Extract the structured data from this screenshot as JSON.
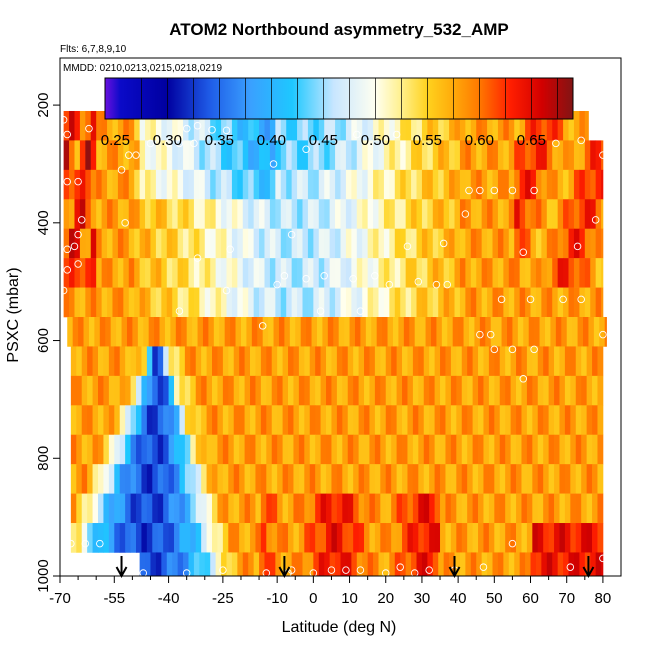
{
  "chart_data": {
    "type": "heatmap",
    "title": "ATOM2 Northbound asymmetry_532_AMP",
    "flights_note": "Flts: 6,7,8,9,10",
    "dates_note": "MMDD: 0210,0213,0215,0218,0219",
    "xlabel": "Latitude (deg N)",
    "ylabel": "PSXC (mbar)",
    "xlim": [
      -70,
      85
    ],
    "ylim": [
      1000,
      120
    ],
    "x_ticks": [
      -70,
      -55,
      -40,
      -25,
      -10,
      0,
      10,
      20,
      30,
      40,
      50,
      60,
      70,
      80
    ],
    "x_minor_ticks": [
      -65,
      -60,
      -50,
      -45,
      -35,
      -30,
      -20,
      -15,
      -5,
      5,
      15,
      25,
      35,
      45,
      55,
      65,
      75
    ],
    "y_ticks": [
      200,
      400,
      600,
      800,
      1000
    ],
    "colorbar": {
      "range": [
        0.24,
        0.69
      ],
      "tick_values": [
        0.25,
        0.3,
        0.35,
        0.4,
        0.45,
        0.5,
        0.55,
        0.6,
        0.65
      ],
      "tick_labels": [
        "0.25",
        "0.30",
        "0.35",
        "0.40",
        "0.45",
        "0.50",
        "0.55",
        "0.60",
        "0.65"
      ],
      "colors": [
        "#6a11e0",
        "#0a0ac8",
        "#0000a0",
        "#1e5ae6",
        "#3aa0ff",
        "#1ec8ff",
        "#c8e6ff",
        "#fffff0",
        "#fff08c",
        "#ffd21e",
        "#ffaa0a",
        "#ff7800",
        "#ff1e00",
        "#d20000",
        "#821414"
      ],
      "color_stops": [
        0.24,
        0.255,
        0.3,
        0.34,
        0.38,
        0.42,
        0.46,
        0.5,
        0.525,
        0.55,
        0.575,
        0.6,
        0.63,
        0.66,
        0.69
      ]
    },
    "pressure_bins": [
      {
        "p_top": 165,
        "p_bot": 210,
        "lat_min": -57,
        "lat_max": 36
      },
      {
        "p_top": 210,
        "p_bot": 260,
        "lat_min": -69,
        "lat_max": 76
      },
      {
        "p_top": 260,
        "p_bot": 310,
        "lat_min": -69,
        "lat_max": 80
      },
      {
        "p_top": 310,
        "p_bot": 360,
        "lat_min": -69,
        "lat_max": 80
      },
      {
        "p_top": 360,
        "p_bot": 410,
        "lat_min": -69,
        "lat_max": 80
      },
      {
        "p_top": 410,
        "p_bot": 460,
        "lat_min": -69,
        "lat_max": 80
      },
      {
        "p_top": 460,
        "p_bot": 510,
        "lat_min": -69,
        "lat_max": 80
      },
      {
        "p_top": 510,
        "p_bot": 560,
        "lat_min": -69,
        "lat_max": 80
      },
      {
        "p_top": 560,
        "p_bot": 610,
        "lat_min": -68,
        "lat_max": 81
      },
      {
        "p_top": 610,
        "p_bot": 660,
        "lat_min": -67,
        "lat_max": 80
      },
      {
        "p_top": 660,
        "p_bot": 710,
        "lat_min": -67,
        "lat_max": 80
      },
      {
        "p_top": 710,
        "p_bot": 760,
        "lat_min": -67,
        "lat_max": 80
      },
      {
        "p_top": 760,
        "p_bot": 810,
        "lat_min": -67,
        "lat_max": 80
      },
      {
        "p_top": 810,
        "p_bot": 860,
        "lat_min": -67,
        "lat_max": 80
      },
      {
        "p_top": 860,
        "p_bot": 910,
        "lat_min": -67,
        "lat_max": 80
      },
      {
        "p_top": 910,
        "p_bot": 960,
        "lat_min": -67,
        "lat_max": 80
      },
      {
        "p_top": 960,
        "p_bot": 1000,
        "lat_min": -48,
        "lat_max": 80
      }
    ],
    "profile_points": [
      {
        "lat": -60,
        "p": 200
      },
      {
        "lat": -56,
        "p": 195
      },
      {
        "lat": -51,
        "p": 198
      },
      {
        "lat": -69,
        "p": 225
      },
      {
        "lat": -68,
        "p": 250
      },
      {
        "lat": -62,
        "p": 240
      },
      {
        "lat": -35,
        "p": 240
      },
      {
        "lat": -32,
        "p": 235
      },
      {
        "lat": -28,
        "p": 242
      },
      {
        "lat": -24,
        "p": 243
      },
      {
        "lat": -19,
        "p": 210
      },
      {
        "lat": -45,
        "p": 265
      },
      {
        "lat": -40,
        "p": 265
      },
      {
        "lat": -37,
        "p": 265
      },
      {
        "lat": -33,
        "p": 265
      },
      {
        "lat": -51,
        "p": 285
      },
      {
        "lat": -49,
        "p": 285
      },
      {
        "lat": -11,
        "p": 300
      },
      {
        "lat": -2,
        "p": 275
      },
      {
        "lat": 12,
        "p": 250
      },
      {
        "lat": 23,
        "p": 250
      },
      {
        "lat": 67,
        "p": 265
      },
      {
        "lat": 74,
        "p": 260
      },
      {
        "lat": 80,
        "p": 285
      },
      {
        "lat": 25,
        "p": 200
      },
      {
        "lat": 36,
        "p": 200
      },
      {
        "lat": -14,
        "p": 203
      },
      {
        "lat": -68,
        "p": 330
      },
      {
        "lat": -65,
        "p": 330
      },
      {
        "lat": -52,
        "p": 400
      },
      {
        "lat": -65,
        "p": 420
      },
      {
        "lat": -68,
        "p": 445
      },
      {
        "lat": -66,
        "p": 440
      },
      {
        "lat": -68,
        "p": 480
      },
      {
        "lat": -65,
        "p": 470
      },
      {
        "lat": -64,
        "p": 395
      },
      {
        "lat": -53,
        "p": 310
      },
      {
        "lat": -6,
        "p": 420
      },
      {
        "lat": 43,
        "p": 345
      },
      {
        "lat": 46,
        "p": 345
      },
      {
        "lat": 50,
        "p": 345
      },
      {
        "lat": 55,
        "p": 345
      },
      {
        "lat": 61,
        "p": 345
      },
      {
        "lat": 42,
        "p": 385
      },
      {
        "lat": 78,
        "p": 395
      },
      {
        "lat": 73,
        "p": 440
      },
      {
        "lat": 58,
        "p": 450
      },
      {
        "lat": 36,
        "p": 435
      },
      {
        "lat": 26,
        "p": 440
      },
      {
        "lat": -23,
        "p": 445
      },
      {
        "lat": -32,
        "p": 460
      },
      {
        "lat": -69,
        "p": 515
      },
      {
        "lat": -24,
        "p": 515
      },
      {
        "lat": -8,
        "p": 490
      },
      {
        "lat": -2,
        "p": 495
      },
      {
        "lat": 3,
        "p": 490
      },
      {
        "lat": 11,
        "p": 495
      },
      {
        "lat": 17,
        "p": 490
      },
      {
        "lat": 21,
        "p": 505
      },
      {
        "lat": 29,
        "p": 500
      },
      {
        "lat": 34,
        "p": 505
      },
      {
        "lat": 37,
        "p": 505
      },
      {
        "lat": -10,
        "p": 505
      },
      {
        "lat": 2,
        "p": 550
      },
      {
        "lat": 13,
        "p": 550
      },
      {
        "lat": -14,
        "p": 575
      },
      {
        "lat": -37,
        "p": 550
      },
      {
        "lat": 52,
        "p": 530
      },
      {
        "lat": 60,
        "p": 530
      },
      {
        "lat": 69,
        "p": 530
      },
      {
        "lat": 74,
        "p": 530
      },
      {
        "lat": 46,
        "p": 590
      },
      {
        "lat": 49,
        "p": 590
      },
      {
        "lat": 50,
        "p": 615
      },
      {
        "lat": 55,
        "p": 615
      },
      {
        "lat": 61,
        "p": 615
      },
      {
        "lat": 80,
        "p": 590
      },
      {
        "lat": 58,
        "p": 665
      },
      {
        "lat": 55,
        "p": 945
      },
      {
        "lat": -67,
        "p": 945
      },
      {
        "lat": -63,
        "p": 945
      },
      {
        "lat": -59,
        "p": 945
      },
      {
        "lat": -47,
        "p": 995
      },
      {
        "lat": -35,
        "p": 995
      },
      {
        "lat": -25,
        "p": 990
      },
      {
        "lat": -6,
        "p": 990
      },
      {
        "lat": 0,
        "p": 995
      },
      {
        "lat": 5,
        "p": 990
      },
      {
        "lat": 9,
        "p": 990
      },
      {
        "lat": 13,
        "p": 990
      },
      {
        "lat": 20,
        "p": 995
      },
      {
        "lat": 24,
        "p": 985
      },
      {
        "lat": 28,
        "p": 995
      },
      {
        "lat": 32,
        "p": 990
      },
      {
        "lat": 39,
        "p": 990
      },
      {
        "lat": 71,
        "p": 985
      },
      {
        "lat": 80,
        "p": 970
      },
      {
        "lat": -7,
        "p": 995
      },
      {
        "lat": -13,
        "p": 995
      },
      {
        "lat": 47,
        "p": 985
      }
    ],
    "arrow_latitudes": [
      -53,
      -8,
      39,
      76
    ],
    "grid": false,
    "legend": "colorbar-top"
  }
}
